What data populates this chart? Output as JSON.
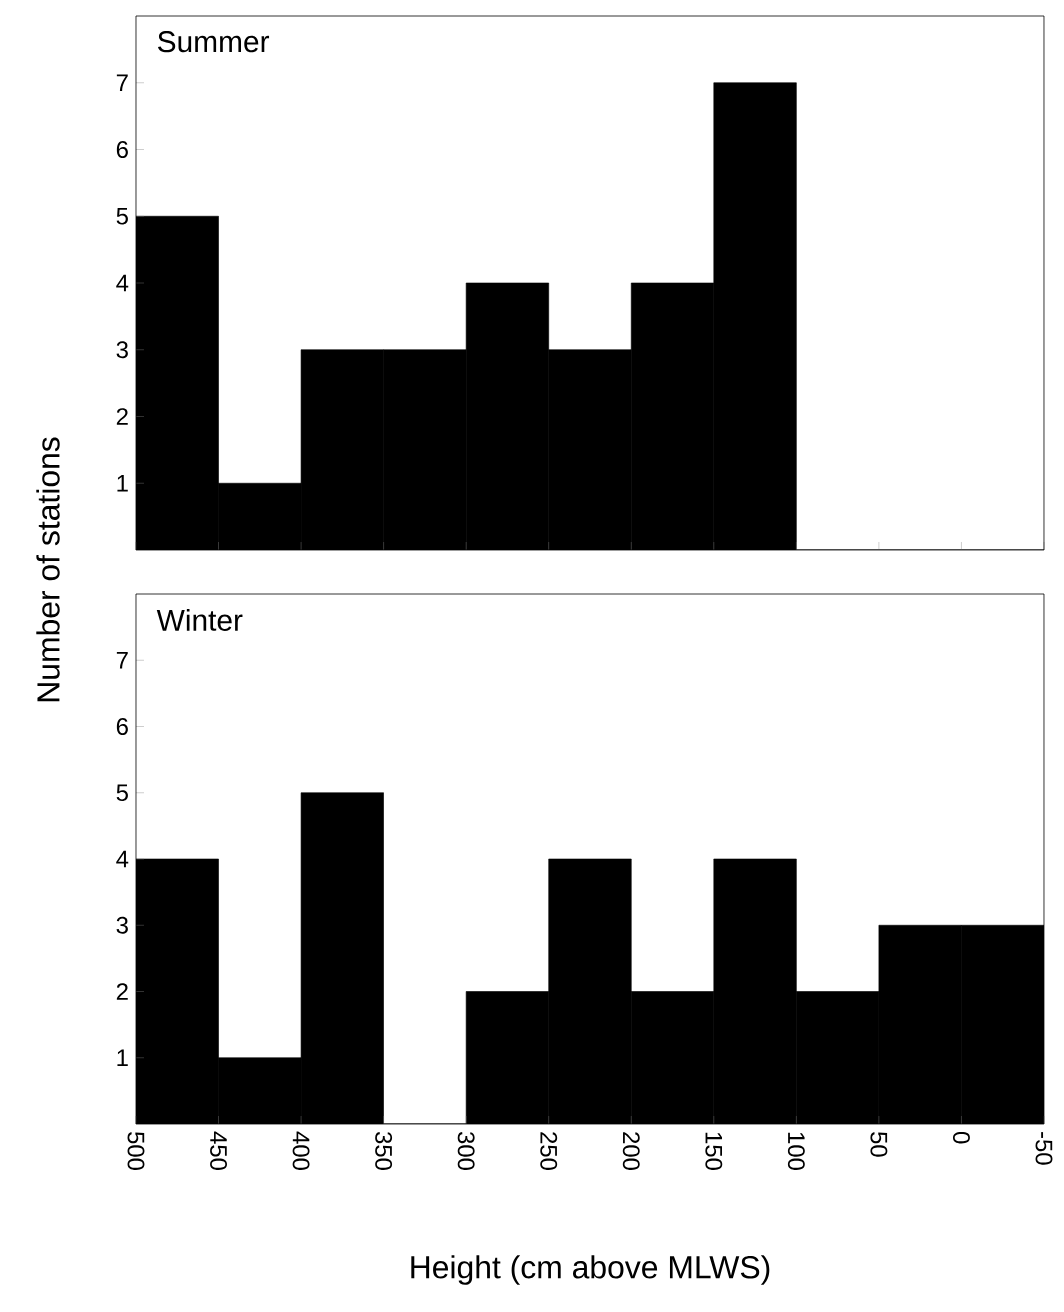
{
  "chart_data": [
    {
      "type": "histogram",
      "title": "Summer",
      "ylabel": "Number of stations",
      "color": "#000000",
      "bins": [
        500,
        450,
        400,
        350,
        300,
        250,
        200,
        150,
        100,
        50,
        0,
        -50
      ],
      "values": [
        5,
        1,
        3,
        3,
        4,
        3,
        4,
        7,
        0,
        0,
        0
      ],
      "xlim": [
        500,
        -50
      ],
      "ylim": [
        0,
        8
      ],
      "yticks": [
        1,
        2,
        3,
        4,
        5,
        6,
        7
      ],
      "tick_labels": "y"
    },
    {
      "type": "histogram",
      "title": "Winter",
      "xlabel": "Height (cm above MLWS)",
      "color": "#000000",
      "bins": [
        500,
        450,
        400,
        350,
        300,
        250,
        200,
        150,
        100,
        50,
        0,
        -50
      ],
      "values": [
        4,
        1,
        5,
        0,
        2,
        4,
        2,
        4,
        2,
        3,
        3
      ],
      "xlim": [
        500,
        -50
      ],
      "ylim": [
        0,
        8
      ],
      "xticks": [
        500,
        450,
        400,
        350,
        300,
        250,
        200,
        150,
        100,
        50,
        0,
        -50
      ],
      "yticks": [
        1,
        2,
        3,
        4,
        5,
        6,
        7
      ]
    }
  ]
}
